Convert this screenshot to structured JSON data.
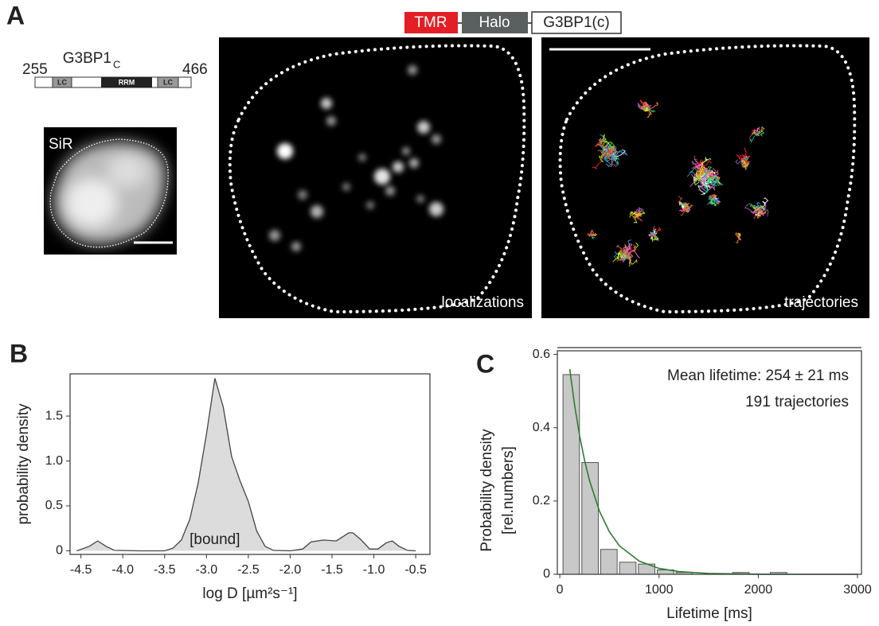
{
  "panel_a": {
    "letter": "A",
    "construct": [
      "TMR",
      "Halo",
      "G3BP1(c)"
    ],
    "domain": {
      "name": "G3BP1",
      "subscript": "C",
      "start": 255,
      "end": 466,
      "segments": [
        "LC",
        "RRM",
        "LC"
      ]
    },
    "sir_label": "SiR",
    "image_labels": [
      "localizations",
      "trajectories"
    ]
  },
  "chart_data": [
    {
      "type": "area",
      "panel": "B",
      "x_label": "log D [µm²s⁻¹]",
      "y_label": "probability density",
      "annotation": "[bound]",
      "x": [
        -4.55,
        -4.4,
        -4.3,
        -4.2,
        -4.1,
        -3.8,
        -3.5,
        -3.4,
        -3.3,
        -3.2,
        -3.1,
        -3.0,
        -2.9,
        -2.8,
        -2.7,
        -2.6,
        -2.5,
        -2.4,
        -2.3,
        -2.2,
        -2.0,
        -1.85,
        -1.75,
        -1.6,
        -1.45,
        -1.3,
        -1.25,
        -1.15,
        -1.05,
        -0.95,
        -0.85,
        -0.78,
        -0.7,
        -0.6,
        -0.5
      ],
      "values": [
        0,
        0.05,
        0.11,
        0.05,
        0.005,
        0,
        0,
        0.03,
        0.12,
        0.35,
        0.75,
        1.3,
        1.92,
        1.6,
        1.05,
        0.78,
        0.55,
        0.22,
        0.05,
        0.005,
        0,
        0.02,
        0.1,
        0.12,
        0.11,
        0.2,
        0.2,
        0.12,
        0.02,
        0.02,
        0.09,
        0.11,
        0.05,
        0.005,
        0
      ],
      "color": "#dcdcdc",
      "line_color": "#444",
      "xlim": [
        -4.63,
        -0.33
      ],
      "ylim": [
        -0.04,
        1.97
      ],
      "xticks": [
        -4.5,
        {
          "value": -4,
          "label": "-4.0"
        },
        -3.5,
        {
          "value": -3,
          "label": "-3.0"
        },
        -2.5,
        {
          "value": -2,
          "label": "-2.0"
        },
        -1.5,
        {
          "value": -1,
          "label": "-1.0"
        },
        -0.5
      ],
      "yticks": [
        0,
        0.5,
        {
          "value": 1,
          "label": "1.0"
        },
        1.5
      ]
    },
    {
      "type": "histogram",
      "panel": "C",
      "x_label": "Lifetime [ms]",
      "y_label": [
        "Probability density",
        "[rel.numbers]"
      ],
      "annotations": [
        "Mean lifetime: 254 ± 21 ms",
        "191 trajectories"
      ],
      "bins": [
        20,
        210,
        400,
        590,
        780,
        970,
        1160,
        1350,
        1540,
        1730,
        1920,
        2110,
        2300,
        2490,
        2680,
        2870
      ],
      "values": [
        0.545,
        0.305,
        0.068,
        0.033,
        0.028,
        0.012,
        0.005,
        0,
        0,
        0.005,
        0,
        0.005,
        0,
        0,
        0
      ],
      "color": "#c8c8c8",
      "line": {
        "x": [
          100,
          150,
          200,
          250,
          300,
          400,
          500,
          600,
          800,
          1000,
          1200,
          1500,
          2000,
          2500,
          3000
        ],
        "values": [
          0.56,
          0.46,
          0.378,
          0.31,
          0.255,
          0.172,
          0.116,
          0.078,
          0.036,
          0.016,
          0.0074,
          0.0023,
          0.0003,
          0,
          0
        ],
        "color": "#2e7d32"
      },
      "xlim": [
        -25,
        3040
      ],
      "ylim": [
        0,
        0.61
      ],
      "xticks": [
        0,
        1000,
        2000,
        3000
      ],
      "yticks": [
        0,
        0.2,
        0.4,
        0.6
      ]
    }
  ]
}
